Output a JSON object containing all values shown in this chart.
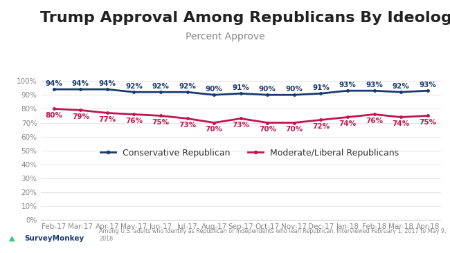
{
  "title": "Trump Approval Among Republicans By Ideology",
  "subtitle": "Percent Approve",
  "x_labels": [
    "Feb-17",
    "Mar-17",
    "Apr-17",
    "May-17",
    "Jun-17",
    "Jul-17",
    "Aug-17",
    "Sep-17",
    "Oct-17",
    "Nov-17",
    "Dec-17",
    "Jan-18",
    "Feb-18",
    "Mar-18",
    "Apr-18"
  ],
  "conservative": [
    94,
    94,
    94,
    92,
    92,
    92,
    90,
    91,
    90,
    90,
    91,
    93,
    93,
    92,
    93
  ],
  "moderate": [
    80,
    79,
    77,
    76,
    75,
    73,
    70,
    73,
    70,
    70,
    72,
    74,
    76,
    74,
    75
  ],
  "conservative_color": "#1b3a6b",
  "moderate_color": "#c01550",
  "background_color": "#ffffff",
  "top_bar_color": "#2ecc71",
  "legend_conservative": "Conservative Republican",
  "legend_moderate": "Moderate/Liberal Republicans",
  "footer_logo": "SurveyMonkey",
  "footer_note": "Among U.S. adults who Identify as Republican or independents who lean Republican, interviewed February 1, 2017 to May 9, 2018",
  "ylim": [
    0,
    100
  ],
  "yticks": [
    0,
    10,
    20,
    30,
    40,
    50,
    60,
    70,
    80,
    90,
    100
  ],
  "title_fontsize": 16,
  "subtitle_fontsize": 10,
  "label_fontsize": 7.5,
  "tick_fontsize": 7.5,
  "legend_fontsize": 9,
  "line_width": 2.0
}
